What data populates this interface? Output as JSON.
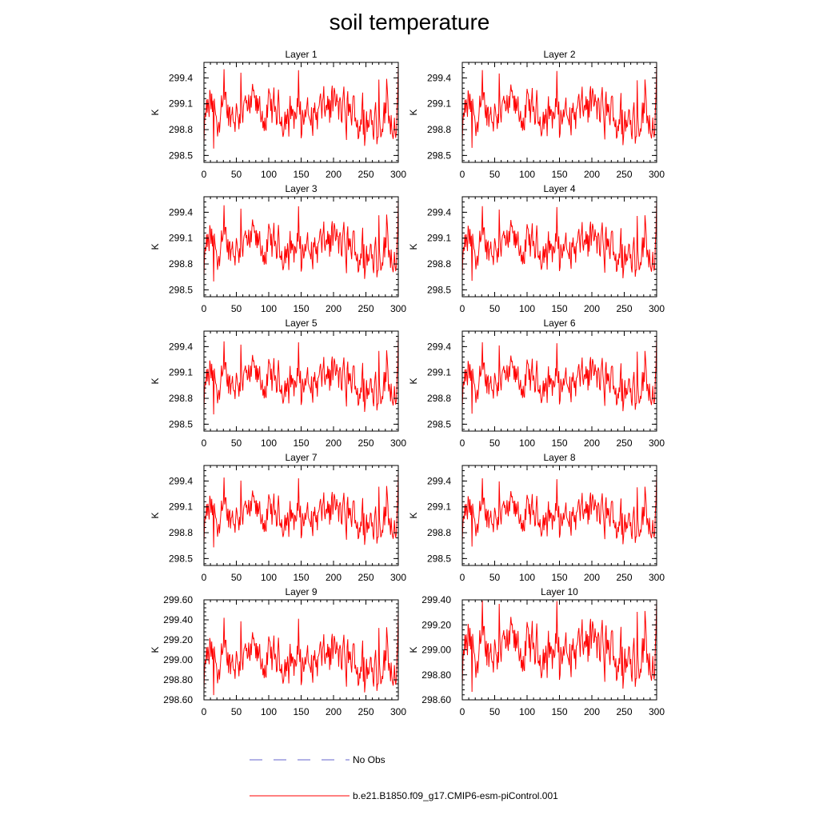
{
  "title": "soil temperature",
  "colors": {
    "series": "#ff0000",
    "obs": "#6666cc",
    "axis": "#000000",
    "background": "#ffffff"
  },
  "legend": [
    {
      "label": "No Obs",
      "style": "dashed",
      "color": "#6666cc"
    },
    {
      "label": "b.e21.B1850.f09_g17.CMIP6-esm-piControl.001",
      "style": "solid",
      "color": "#ff0000"
    }
  ],
  "chart_data": [
    {
      "type": "line",
      "title": "Layer 1",
      "xlabel": "",
      "ylabel": "K",
      "xlim": [
        0,
        300
      ],
      "ylim": [
        298.42,
        299.58
      ],
      "xticks": [
        "0",
        "50",
        "100",
        "150",
        "200",
        "250",
        "300"
      ],
      "yticks": [
        "298.5",
        "298.8",
        "299.1",
        "299.4"
      ],
      "series": [
        {
          "name": "b.e21.B1850.f09_g17.CMIP6-esm-piControl.001",
          "amp": 1.0,
          "values": []
        }
      ]
    },
    {
      "type": "line",
      "title": "Layer 2",
      "xlabel": "",
      "ylabel": "K",
      "xlim": [
        0,
        300
      ],
      "ylim": [
        298.42,
        299.58
      ],
      "xticks": [
        "0",
        "50",
        "100",
        "150",
        "200",
        "250",
        "300"
      ],
      "yticks": [
        "298.5",
        "298.8",
        "299.1",
        "299.4"
      ],
      "series": [
        {
          "name": "b.e21.B1850.f09_g17.CMIP6-esm-piControl.001",
          "amp": 0.98,
          "values": []
        }
      ]
    },
    {
      "type": "line",
      "title": "Layer 3",
      "xlabel": "",
      "ylabel": "K",
      "xlim": [
        0,
        300
      ],
      "ylim": [
        298.42,
        299.58
      ],
      "xticks": [
        "0",
        "50",
        "100",
        "150",
        "200",
        "250",
        "300"
      ],
      "yticks": [
        "298.5",
        "298.8",
        "299.1",
        "299.4"
      ],
      "series": [
        {
          "name": "b.e21.B1850.f09_g17.CMIP6-esm-piControl.001",
          "amp": 0.96,
          "values": []
        }
      ]
    },
    {
      "type": "line",
      "title": "Layer 4",
      "xlabel": "",
      "ylabel": "K",
      "xlim": [
        0,
        300
      ],
      "ylim": [
        298.42,
        299.58
      ],
      "xticks": [
        "0",
        "50",
        "100",
        "150",
        "200",
        "250",
        "300"
      ],
      "yticks": [
        "298.5",
        "298.8",
        "299.1",
        "299.4"
      ],
      "series": [
        {
          "name": "b.e21.B1850.f09_g17.CMIP6-esm-piControl.001",
          "amp": 0.94,
          "values": []
        }
      ]
    },
    {
      "type": "line",
      "title": "Layer 5",
      "xlabel": "",
      "ylabel": "K",
      "xlim": [
        0,
        300
      ],
      "ylim": [
        298.42,
        299.58
      ],
      "xticks": [
        "0",
        "50",
        "100",
        "150",
        "200",
        "250",
        "300"
      ],
      "yticks": [
        "298.5",
        "298.8",
        "299.1",
        "299.4"
      ],
      "series": [
        {
          "name": "b.e21.B1850.f09_g17.CMIP6-esm-piControl.001",
          "amp": 0.92,
          "values": []
        }
      ]
    },
    {
      "type": "line",
      "title": "Layer 6",
      "xlabel": "",
      "ylabel": "K",
      "xlim": [
        0,
        300
      ],
      "ylim": [
        298.42,
        299.58
      ],
      "xticks": [
        "0",
        "50",
        "100",
        "150",
        "200",
        "250",
        "300"
      ],
      "yticks": [
        "298.5",
        "298.8",
        "299.1",
        "299.4"
      ],
      "series": [
        {
          "name": "b.e21.B1850.f09_g17.CMIP6-esm-piControl.001",
          "amp": 0.9,
          "values": []
        }
      ]
    },
    {
      "type": "line",
      "title": "Layer 7",
      "xlabel": "",
      "ylabel": "K",
      "xlim": [
        0,
        300
      ],
      "ylim": [
        298.42,
        299.58
      ],
      "xticks": [
        "0",
        "50",
        "100",
        "150",
        "200",
        "250",
        "300"
      ],
      "yticks": [
        "298.5",
        "298.8",
        "299.1",
        "299.4"
      ],
      "series": [
        {
          "name": "b.e21.B1850.f09_g17.CMIP6-esm-piControl.001",
          "amp": 0.88,
          "values": []
        }
      ]
    },
    {
      "type": "line",
      "title": "Layer 8",
      "xlabel": "",
      "ylabel": "K",
      "xlim": [
        0,
        300
      ],
      "ylim": [
        298.42,
        299.58
      ],
      "xticks": [
        "0",
        "50",
        "100",
        "150",
        "200",
        "250",
        "300"
      ],
      "yticks": [
        "298.5",
        "298.8",
        "299.1",
        "299.4"
      ],
      "series": [
        {
          "name": "b.e21.B1850.f09_g17.CMIP6-esm-piControl.001",
          "amp": 0.86,
          "values": []
        }
      ]
    },
    {
      "type": "line",
      "title": "Layer 9",
      "xlabel": "",
      "ylabel": "K",
      "xlim": [
        0,
        300
      ],
      "ylim": [
        298.6,
        299.6
      ],
      "xticks": [
        "0",
        "50",
        "100",
        "150",
        "200",
        "250",
        "300"
      ],
      "yticks": [
        "298.60",
        "298.80",
        "299.00",
        "299.20",
        "299.40",
        "299.60"
      ],
      "series": [
        {
          "name": "b.e21.B1850.f09_g17.CMIP6-esm-piControl.001",
          "amp": 0.84,
          "values": []
        }
      ]
    },
    {
      "type": "line",
      "title": "Layer 10",
      "xlabel": "",
      "ylabel": "K",
      "xlim": [
        0,
        300
      ],
      "ylim": [
        298.6,
        299.4
      ],
      "xticks": [
        "0",
        "50",
        "100",
        "150",
        "200",
        "250",
        "300"
      ],
      "yticks": [
        "298.60",
        "298.80",
        "299.00",
        "299.20",
        "299.40"
      ],
      "series": [
        {
          "name": "b.e21.B1850.f09_g17.CMIP6-esm-piControl.001",
          "amp": 0.8,
          "values": []
        }
      ]
    }
  ]
}
